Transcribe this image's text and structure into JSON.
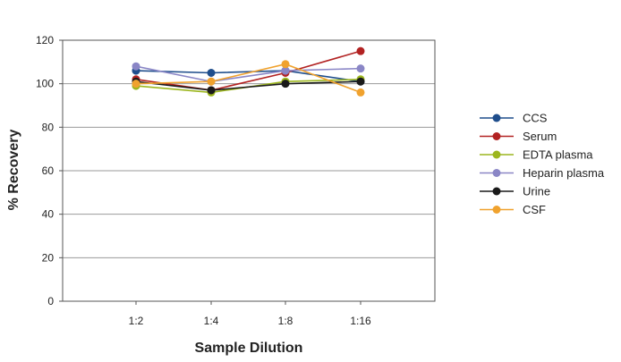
{
  "chart_data": {
    "type": "line",
    "categories": [
      "1:2",
      "1:4",
      "1:8",
      "1:16"
    ],
    "xlabel": "Sample Dilution",
    "ylabel": "% Recovery",
    "ylim": [
      0,
      120
    ],
    "yticks": [
      0,
      20,
      40,
      60,
      80,
      100,
      120
    ],
    "grid": true,
    "legend_position": "right",
    "series": [
      {
        "name": "CCS",
        "color": "#1f4e8c",
        "values": [
          106,
          105,
          106,
          101
        ]
      },
      {
        "name": "Serum",
        "color": "#b22222",
        "values": [
          102,
          97,
          105,
          115
        ]
      },
      {
        "name": "EDTA plasma",
        "color": "#9cb61e",
        "values": [
          99,
          96,
          101,
          102
        ]
      },
      {
        "name": "Heparin plasma",
        "color": "#8a86c6",
        "values": [
          108,
          101,
          106,
          107
        ]
      },
      {
        "name": "Urine",
        "color": "#1a1a1a",
        "values": [
          101,
          97,
          100,
          101
        ]
      },
      {
        "name": "CSF",
        "color": "#f0a22e",
        "values": [
          100,
          101,
          109,
          96
        ]
      }
    ]
  }
}
